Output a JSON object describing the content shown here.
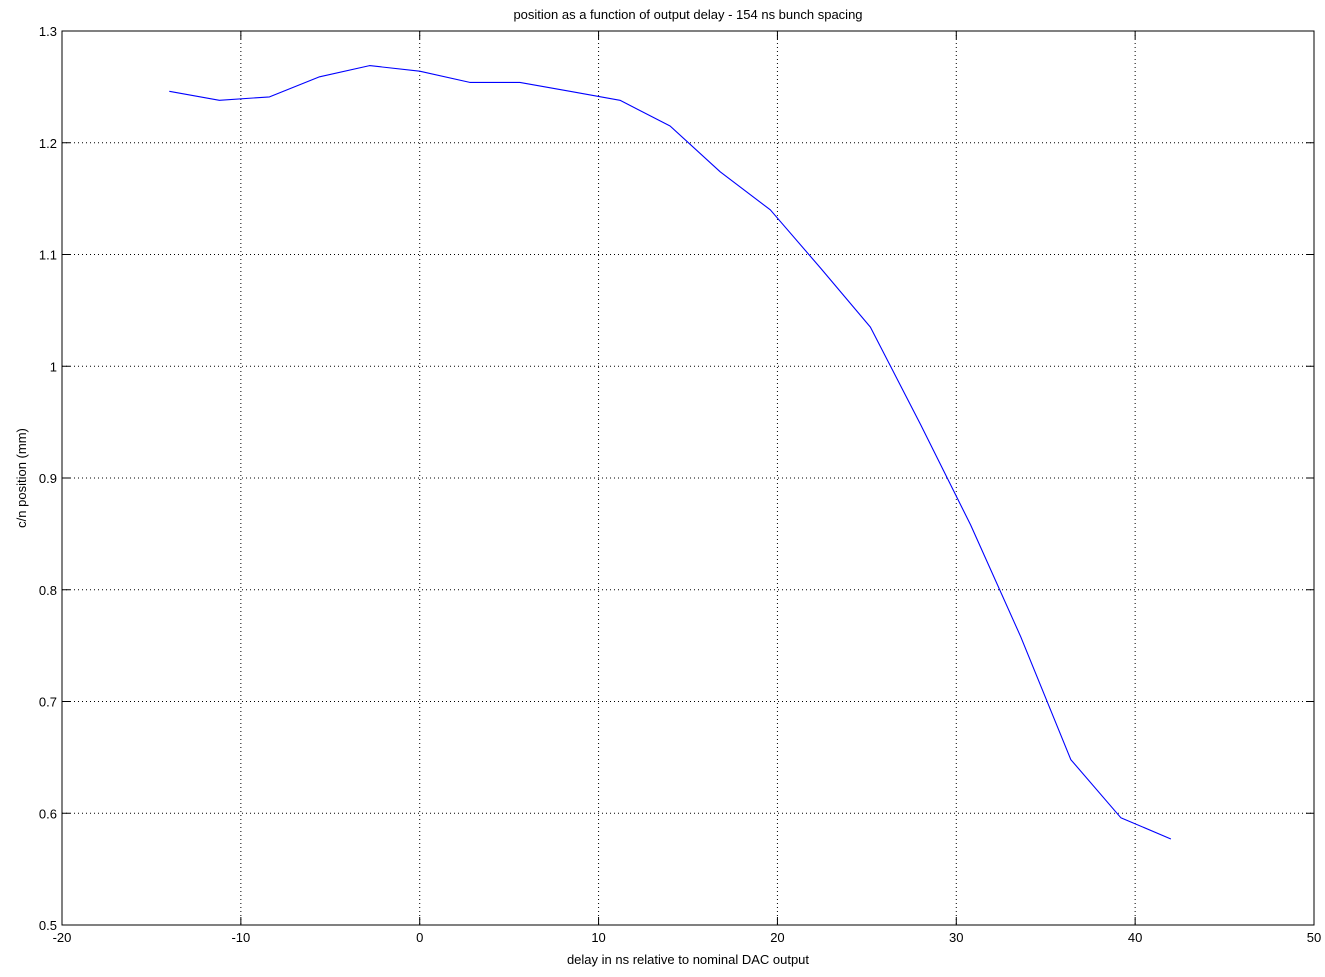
{
  "chart_data": {
    "type": "line",
    "title": "position as a function of output delay - 154 ns bunch spacing",
    "xlabel": "delay in ns relative to nominal DAC output",
    "ylabel": "c/n position (mm)",
    "xlim": [
      -20,
      50
    ],
    "ylim": [
      0.5,
      1.3
    ],
    "xticks": [
      -20,
      -10,
      0,
      10,
      20,
      30,
      40,
      50
    ],
    "yticks": [
      0.5,
      0.6,
      0.7,
      0.8,
      0.9,
      1,
      1.1,
      1.2,
      1.3
    ],
    "xtick_labels": [
      "-20",
      "-10",
      "0",
      "10",
      "20",
      "30",
      "40",
      "50"
    ],
    "ytick_labels": [
      "0.5",
      "0.6",
      "0.7",
      "0.8",
      "0.9",
      "1",
      "1.1",
      "1.2",
      "1.3"
    ],
    "grid": true,
    "grid_style": "dotted",
    "series": [
      {
        "color": "#0000ff",
        "x": [
          -14,
          -11.2,
          -8.4,
          -5.6,
          -2.8,
          0,
          2.8,
          5.6,
          8.4,
          11.2,
          14,
          16.8,
          19.6,
          22.4,
          25.2,
          28,
          30.8,
          33.6,
          36.4,
          39.2,
          42
        ],
        "y": [
          1.246,
          1.238,
          1.241,
          1.259,
          1.269,
          1.264,
          1.254,
          1.254,
          1.246,
          1.238,
          1.215,
          1.174,
          1.14,
          1.088,
          1.035,
          0.948,
          0.858,
          0.758,
          0.648,
          0.596,
          0.577
        ]
      }
    ]
  }
}
